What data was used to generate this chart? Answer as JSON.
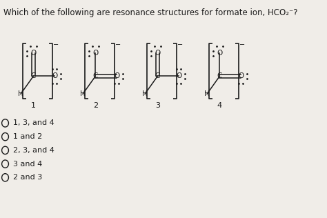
{
  "title": "Which of the following are resonance structures for formate ion, HCO₂⁻?",
  "title_fontsize": 9.5,
  "background_color": "#f0ede8",
  "options": [
    "1, 3, and 4",
    "1 and 2",
    "2, 3, and 4",
    "3 and 4",
    "2 and 3"
  ],
  "structure_labels": [
    "1",
    "2",
    "3",
    "4"
  ],
  "text_color": "#1a1a1a"
}
